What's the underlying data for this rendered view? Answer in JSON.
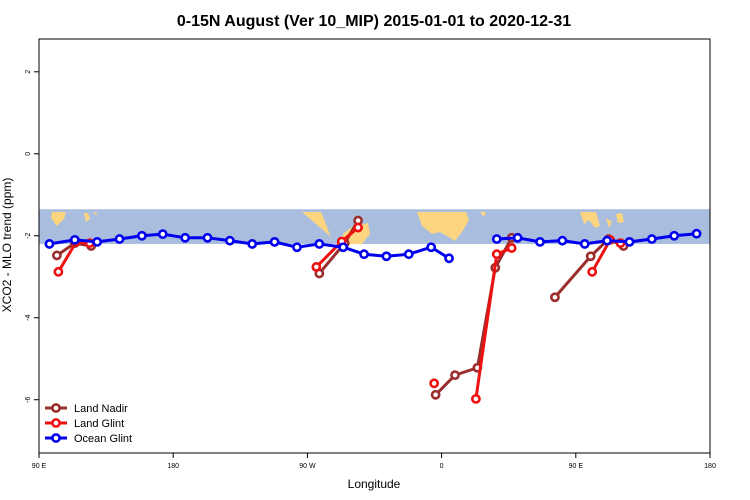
{
  "chart_data": {
    "type": "line",
    "title": "0-15N August (Ver 10_MIP)   2015-01-01 to 2020-12-31",
    "xlabel": "Longitude",
    "ylabel": "XCO2 - MLO trend (ppm)",
    "xlim": [
      90,
      540
    ],
    "ylim": [
      -7.3,
      2.8
    ],
    "x_ticks": [
      {
        "value": 90,
        "label": "90 E"
      },
      {
        "value": 180,
        "label": "180"
      },
      {
        "value": 270,
        "label": "90 W"
      },
      {
        "value": 360,
        "label": "0"
      },
      {
        "value": 450,
        "label": "90 E"
      },
      {
        "value": 540,
        "label": "180"
      }
    ],
    "y_ticks": [
      {
        "value": 2,
        "label": "2"
      },
      {
        "value": 0,
        "label": "0"
      },
      {
        "value": -2,
        "label": "-2"
      },
      {
        "value": -4,
        "label": "-4"
      },
      {
        "value": -6,
        "label": "-6"
      }
    ],
    "map_band": {
      "lat_range": [
        0,
        15
      ],
      "y_top": -1.35,
      "y_bottom": -2.2,
      "ocean_color": "#a9bedf",
      "land_color": "#fcd580"
    },
    "legend_position": "bottom-left",
    "series": [
      {
        "name": "Land Nadir",
        "color": "#9b2d2d",
        "segments": [
          [
            [
              102,
              -2.48
            ],
            [
              114,
              -2.18
            ],
            [
              125,
              -2.25
            ]
          ],
          [
            [
              278,
              -2.92
            ],
            [
              295,
              -2.18
            ],
            [
              304,
              -1.63
            ]
          ],
          [
            [
              356,
              -5.88
            ],
            [
              369,
              -5.4
            ],
            [
              384,
              -5.22
            ],
            [
              396,
              -2.78
            ],
            [
              407,
              -2.05
            ]
          ],
          [
            [
              436,
              -3.5
            ],
            [
              460,
              -2.5
            ],
            [
              472,
              -2.08
            ],
            [
              482,
              -2.25
            ]
          ]
        ]
      },
      {
        "name": "Land Glint",
        "color": "#ee1111",
        "segments": [
          [
            [
              103,
              -2.88
            ],
            [
              115,
              -2.15
            ],
            [
              124,
              -2.18
            ]
          ],
          [
            [
              276,
              -2.76
            ],
            [
              293,
              -2.14
            ],
            [
              304,
              -1.8
            ]
          ],
          [
            [
              355,
              -5.6
            ]
          ],
          [
            [
              383,
              -5.98
            ],
            [
              397,
              -2.45
            ],
            [
              407,
              -2.3
            ]
          ],
          [
            [
              461,
              -2.88
            ],
            [
              473,
              -2.1
            ],
            [
              480,
              -2.18
            ]
          ]
        ]
      },
      {
        "name": "Ocean Glint",
        "color": "#0000ee",
        "segments": [
          [
            [
              97,
              -2.2
            ],
            [
              114,
              -2.1
            ],
            [
              129,
              -2.15
            ],
            [
              144,
              -2.08
            ],
            [
              159,
              -2.0
            ],
            [
              173,
              -1.96
            ],
            [
              188,
              -2.05
            ],
            [
              203,
              -2.05
            ],
            [
              218,
              -2.12
            ],
            [
              233,
              -2.2
            ],
            [
              248,
              -2.15
            ],
            [
              263,
              -2.28
            ],
            [
              278,
              -2.2
            ],
            [
              294,
              -2.28
            ],
            [
              308,
              -2.45
            ],
            [
              323,
              -2.5
            ],
            [
              338,
              -2.45
            ],
            [
              353,
              -2.28
            ],
            [
              365,
              -2.55
            ]
          ],
          [
            [
              397,
              -2.08
            ],
            [
              411,
              -2.05
            ],
            [
              426,
              -2.15
            ],
            [
              441,
              -2.12
            ],
            [
              456,
              -2.2
            ],
            [
              471,
              -2.12
            ],
            [
              486,
              -2.15
            ],
            [
              501,
              -2.08
            ],
            [
              516,
              -2.0
            ],
            [
              531,
              -1.95
            ]
          ]
        ]
      }
    ]
  }
}
